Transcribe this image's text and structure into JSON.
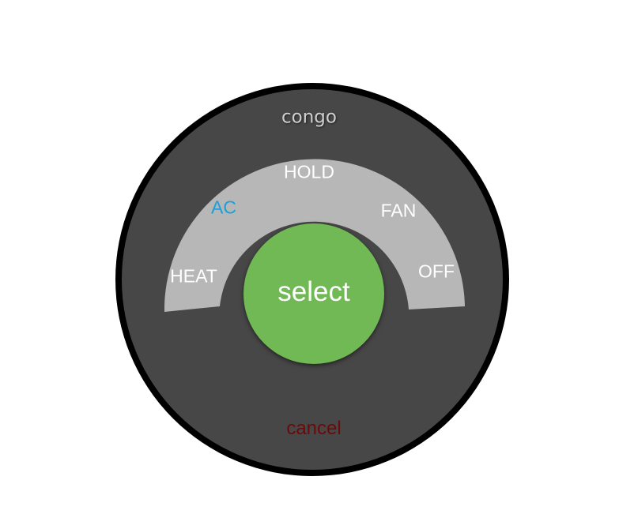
{
  "dial": {
    "title": "congo",
    "modes": [
      {
        "label": "HEAT",
        "active": false
      },
      {
        "label": "AC",
        "active": true
      },
      {
        "label": "HOLD",
        "active": false
      },
      {
        "label": "FAN",
        "active": false
      },
      {
        "label": "OFF",
        "active": false
      }
    ],
    "select_label": "select",
    "cancel_label": "cancel"
  },
  "colors": {
    "outer_ring": "#000000",
    "dial_face": "#474747",
    "arc_track": "#b7b7b7",
    "select_button": "#71b955",
    "active_mode": "#1a9fd9",
    "cancel_text": "#6b0a0a"
  }
}
